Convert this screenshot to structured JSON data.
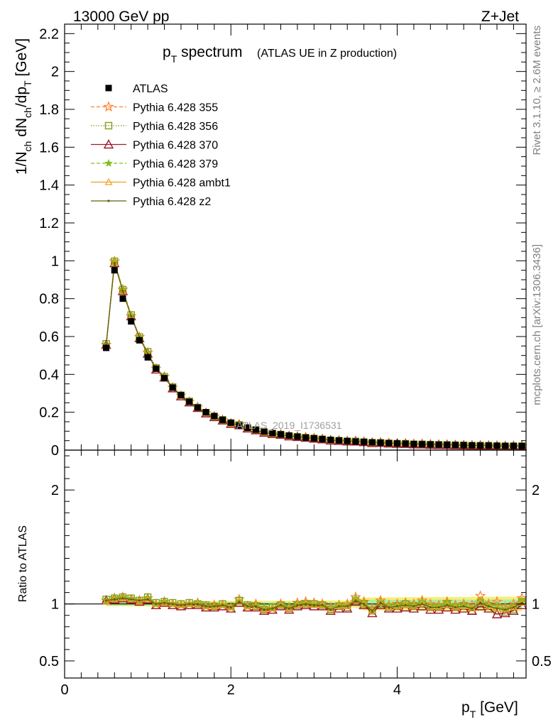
{
  "header": {
    "left": "13000 GeV pp",
    "right": "Z+Jet"
  },
  "side_text": {
    "rivet": "Rivet 3.1.10, ≥ 2.6M events",
    "mcplots": "mcplots.cern.ch [arXiv:1306.3436]"
  },
  "watermark": "ATLAS_2019_I1736531",
  "colors": {
    "data": "#000000",
    "p355": "#ff7f2a",
    "p356": "#7fa01a",
    "p370": "#a01a2a",
    "p379": "#7fc01a",
    "ambt1": "#f0a020",
    "z2": "#606010",
    "band_yellow": "#f5f07a",
    "band_green": "#a8eda8"
  },
  "chart_data": [
    {
      "type": "line",
      "title_main": "p",
      "title_sub": "T",
      "title_rest": " spectrum",
      "title_paren": "(ATLAS UE in Z production)",
      "ylabel": "1/N_ch dN_ch/dp_T [GeV]",
      "ylim": [
        0,
        2.25
      ],
      "yticks": [
        0,
        0.2,
        0.4,
        0.6,
        0.8,
        1,
        1.2,
        1.4,
        1.6,
        1.8,
        2,
        2.2
      ],
      "xlim": [
        0,
        5.55
      ],
      "x": [
        0.5,
        0.6,
        0.7,
        0.8,
        0.9,
        1.0,
        1.1,
        1.2,
        1.3,
        1.4,
        1.5,
        1.6,
        1.7,
        1.8,
        1.9,
        2.0,
        2.1,
        2.2,
        2.3,
        2.4,
        2.5,
        2.6,
        2.7,
        2.8,
        2.9,
        3.0,
        3.1,
        3.2,
        3.3,
        3.4,
        3.5,
        3.6,
        3.7,
        3.8,
        3.9,
        4.0,
        4.1,
        4.2,
        4.3,
        4.4,
        4.5,
        4.6,
        4.7,
        4.8,
        4.9,
        5.0,
        5.1,
        5.2,
        5.3,
        5.4,
        5.5
      ],
      "data_values": [
        0.54,
        0.95,
        0.8,
        0.68,
        0.58,
        0.49,
        0.43,
        0.38,
        0.33,
        0.29,
        0.255,
        0.225,
        0.2,
        0.18,
        0.16,
        0.145,
        0.13,
        0.118,
        0.108,
        0.098,
        0.09,
        0.083,
        0.077,
        0.071,
        0.066,
        0.062,
        0.058,
        0.054,
        0.051,
        0.048,
        0.045,
        0.043,
        0.041,
        0.039,
        0.037,
        0.035,
        0.034,
        0.032,
        0.031,
        0.03,
        0.029,
        0.028,
        0.027,
        0.026,
        0.025,
        0.024,
        0.024,
        0.023,
        0.022,
        0.022,
        0.021
      ],
      "series": [
        {
          "name": "ATLAS",
          "key": "data",
          "style": "data"
        },
        {
          "name": "Pythia 6.428 355",
          "key": "p355",
          "style": "dashed",
          "marker": "star"
        },
        {
          "name": "Pythia 6.428 356",
          "key": "p356",
          "style": "dotted",
          "marker": "square"
        },
        {
          "name": "Pythia 6.428 370",
          "key": "p370",
          "style": "solid",
          "marker": "triangle"
        },
        {
          "name": "Pythia 6.428 379",
          "key": "p379",
          "style": "dashed",
          "marker": "smallstar"
        },
        {
          "name": "Pythia 6.428 ambt1",
          "key": "ambt1",
          "style": "solid",
          "marker": "smalltriangle"
        },
        {
          "name": "Pythia 6.428 z2",
          "key": "z2",
          "style": "solid",
          "marker": "dot"
        }
      ]
    },
    {
      "type": "line",
      "ylabel": "Ratio to ATLAS",
      "ylim": [
        0.35,
        2.35
      ],
      "yticks": [
        0.5,
        1,
        2
      ],
      "xlabel_main": "p",
      "xlabel_sub": "T",
      "xlabel_rest": " [GeV]",
      "xlim": [
        0,
        5.55
      ],
      "xticks": [
        0,
        2,
        4
      ],
      "ratios": {
        "p355": [
          1.03,
          1.05,
          1.06,
          1.04,
          1.03,
          1.05,
          1.0,
          1.02,
          1.0,
          0.99,
          1.0,
          1.01,
          0.98,
          0.99,
          0.99,
          0.97,
          1.04,
          0.98,
          1.0,
          0.96,
          0.96,
          1.0,
          0.97,
          1.01,
          1.02,
          1.01,
          1.0,
          0.97,
          0.99,
          1.0,
          1.06,
          1.02,
          0.96,
          1.03,
          0.99,
          1.0,
          1.01,
          1.0,
          1.03,
          1.0,
          0.99,
          1.02,
          0.99,
          1.0,
          0.99,
          1.07,
          1.0,
          1.02,
          0.97,
          1.0,
          1.05
        ],
        "p356": [
          1.04,
          1.05,
          1.06,
          1.05,
          1.03,
          1.06,
          1.01,
          1.02,
          1.01,
          1.0,
          1.01,
          1.0,
          0.99,
          0.98,
          1.0,
          0.98,
          1.03,
          0.99,
          0.98,
          0.95,
          0.97,
          0.99,
          0.96,
          0.99,
          1.0,
          1.0,
          0.99,
          0.95,
          0.98,
          0.97,
          1.03,
          1.0,
          0.94,
          1.0,
          0.97,
          0.98,
          1.0,
          0.98,
          1.0,
          0.97,
          0.97,
          1.0,
          0.97,
          0.98,
          0.94,
          1.0,
          0.98,
          0.94,
          0.93,
          0.95,
          1.02
        ],
        "p370": [
          1.03,
          1.04,
          1.05,
          1.04,
          1.02,
          1.04,
          0.99,
          1.01,
          0.99,
          0.98,
          0.99,
          0.99,
          0.97,
          0.97,
          0.98,
          0.96,
          1.01,
          0.97,
          0.97,
          0.94,
          0.95,
          0.98,
          0.95,
          0.98,
          0.99,
          0.98,
          0.98,
          0.94,
          0.96,
          0.96,
          1.02,
          0.99,
          0.92,
          0.99,
          0.96,
          0.96,
          0.97,
          0.96,
          0.98,
          0.95,
          0.95,
          0.97,
          0.95,
          0.96,
          0.94,
          0.98,
          0.96,
          0.91,
          0.92,
          0.94,
          0.99
        ],
        "p379": [
          1.03,
          1.05,
          1.06,
          1.05,
          1.03,
          1.05,
          1.0,
          1.02,
          1.0,
          0.99,
          1.0,
          1.01,
          0.98,
          0.98,
          0.99,
          0.97,
          1.03,
          0.98,
          0.99,
          0.96,
          0.96,
          0.99,
          0.97,
          1.0,
          1.01,
          1.0,
          0.99,
          0.96,
          0.99,
          0.99,
          1.05,
          1.01,
          0.95,
          1.02,
          0.98,
          0.99,
          1.0,
          0.99,
          1.02,
          0.98,
          0.98,
          1.01,
          0.98,
          0.99,
          0.97,
          1.03,
          0.99,
          0.98,
          0.96,
          0.98,
          1.03
        ],
        "ambt1": [
          1.02,
          1.04,
          1.05,
          1.04,
          1.02,
          1.04,
          1.0,
          1.01,
          1.0,
          0.99,
          1.0,
          1.0,
          0.98,
          0.98,
          0.99,
          0.97,
          1.02,
          0.98,
          0.98,
          0.95,
          0.96,
          0.99,
          0.96,
          0.99,
          1.0,
          0.99,
          0.99,
          0.95,
          0.98,
          0.98,
          1.03,
          1.0,
          0.94,
          1.01,
          0.97,
          0.98,
          0.99,
          0.98,
          1.0,
          0.97,
          0.97,
          0.99,
          0.97,
          0.98,
          0.96,
          1.01,
          0.98,
          0.96,
          0.95,
          0.97,
          1.01
        ],
        "z2": [
          1.03,
          1.04,
          1.05,
          1.04,
          1.03,
          1.04,
          1.0,
          1.01,
          1.0,
          0.99,
          1.0,
          1.0,
          0.98,
          0.98,
          0.99,
          0.97,
          1.02,
          0.98,
          0.98,
          0.95,
          0.96,
          0.99,
          0.96,
          0.99,
          1.0,
          0.99,
          0.99,
          0.95,
          0.98,
          0.98,
          1.03,
          1.0,
          0.94,
          1.01,
          0.97,
          0.98,
          0.99,
          0.98,
          1.0,
          0.97,
          0.97,
          0.99,
          0.97,
          0.98,
          0.96,
          1.01,
          0.98,
          0.96,
          0.95,
          0.97,
          1.01
        ]
      }
    }
  ]
}
